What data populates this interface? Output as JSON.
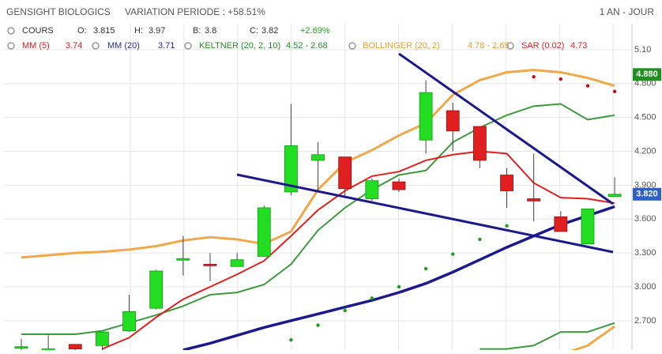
{
  "header": {
    "name": "GENSIGHT BIOLOGICS",
    "variation": "VARIATION PERIODE : +58.51%",
    "period": "1 AN - JOUR",
    "row1": [
      "COURS",
      "O:",
      "3.815",
      "H:",
      "3.97",
      "B:",
      "3.8",
      "C:",
      "3.82",
      "+2.69%"
    ],
    "indicators": [
      {
        "name": "MM (5)",
        "value": "3.74"
      },
      {
        "name": "MM (20)",
        "value": "3.71"
      },
      {
        "name": "KELTNER (20, 2, 10)",
        "value": "4.52 - 2.68"
      },
      {
        "name": "BOLLINGER (20, 2)",
        "value": "4.78 - 2.65"
      },
      {
        "name": "SAR (0.02)",
        "value": "4.73"
      }
    ]
  },
  "chart_data": {
    "type": "candlestick",
    "ylim": [
      2.44,
      5.33
    ],
    "yticks": [
      {
        "value": 5.1,
        "label": "5.10"
      },
      {
        "value": 4.8,
        "label": "4.800"
      },
      {
        "value": 4.5,
        "label": "4.500"
      },
      {
        "value": 4.2,
        "label": "4.200"
      },
      {
        "value": 3.9,
        "label": "3.900"
      },
      {
        "value": 3.6,
        "label": "3.600"
      },
      {
        "value": 3.3,
        "label": "3.300"
      },
      {
        "value": 3.0,
        "label": "3.000"
      },
      {
        "value": 2.7,
        "label": "2.700"
      }
    ],
    "up_color": "#22dd22",
    "down_color": "#e02020",
    "open": [
      2.47,
      2.44,
      2.49,
      2.48,
      2.61,
      2.81,
      3.25,
      3.2,
      3.18,
      3.27,
      3.84,
      4.12,
      4.15,
      3.78,
      3.93,
      4.3,
      4.56,
      4.42,
      3.99,
      3.78,
      3.62,
      3.38,
      3.8
    ],
    "high": [
      2.54,
      2.57,
      2.49,
      2.6,
      2.93,
      3.15,
      3.45,
      3.3,
      3.3,
      3.72,
      4.62,
      4.28,
      4.15,
      3.96,
      3.96,
      4.83,
      4.63,
      4.42,
      4.05,
      4.18,
      3.67,
      3.69,
      3.97
    ],
    "low": [
      2.38,
      2.44,
      2.44,
      2.44,
      2.6,
      2.8,
      3.1,
      3.05,
      3.18,
      3.27,
      3.81,
      3.84,
      3.8,
      3.76,
      3.84,
      4.18,
      4.2,
      4.05,
      3.7,
      3.58,
      3.49,
      3.38,
      3.8
    ],
    "close": [
      2.47,
      2.45,
      2.45,
      2.6,
      2.78,
      3.14,
      3.25,
      3.19,
      3.24,
      3.7,
      4.25,
      4.17,
      3.87,
      3.94,
      3.86,
      4.72,
      4.38,
      4.12,
      3.85,
      3.76,
      3.49,
      3.69,
      3.82
    ],
    "series": [
      {
        "name": "BOLLINGER (20, 2)",
        "color": "#f0a848",
        "width": 3,
        "values": [
          3.26,
          3.28,
          3.3,
          3.31,
          3.33,
          3.36,
          3.41,
          3.44,
          3.42,
          3.38,
          3.49,
          3.86,
          4.1,
          4.21,
          4.34,
          4.45,
          4.7,
          4.83,
          4.9,
          4.92,
          4.9,
          4.85,
          4.78
        ]
      },
      {
        "name": "BOLLINGER (20, 2)",
        "color": "#f0a848",
        "width": 3,
        "values": [
          null,
          null,
          null,
          null,
          null,
          null,
          null,
          null,
          null,
          null,
          null,
          null,
          null,
          null,
          null,
          null,
          null,
          null,
          null,
          null,
          2.4,
          2.48,
          2.65
        ]
      },
      {
        "name": "KELTNER (20, 2, 10)",
        "color": "#3c9a3c",
        "width": 2,
        "values": [
          2.58,
          2.58,
          2.58,
          2.61,
          2.68,
          2.75,
          2.83,
          2.93,
          2.95,
          3.02,
          3.2,
          3.5,
          3.7,
          3.86,
          3.99,
          4.03,
          4.28,
          4.41,
          4.52,
          4.6,
          4.62,
          4.48,
          4.52
        ]
      },
      {
        "name": "KELTNER (20, 2, 10)",
        "color": "#3c9a3c",
        "width": 2,
        "values": [
          null,
          null,
          null,
          null,
          null,
          null,
          null,
          null,
          null,
          null,
          null,
          null,
          null,
          null,
          null,
          null,
          null,
          2.45,
          2.45,
          2.48,
          2.6,
          2.6,
          2.68
        ]
      },
      {
        "name": "MM (5)",
        "color": "#e02020",
        "width": 2,
        "values": [
          null,
          null,
          null,
          2.45,
          2.55,
          2.73,
          2.89,
          3.0,
          3.11,
          3.23,
          3.45,
          3.68,
          3.85,
          3.98,
          4.02,
          4.12,
          4.17,
          4.2,
          4.18,
          3.92,
          3.79,
          3.78,
          3.74
        ]
      },
      {
        "name": "MM (20)",
        "color": "#1a1a8c",
        "width": 3.5,
        "values": [
          null,
          null,
          null,
          null,
          null,
          null,
          2.44,
          2.5,
          2.57,
          2.64,
          2.7,
          2.76,
          2.82,
          2.88,
          2.95,
          3.03,
          3.13,
          3.24,
          3.35,
          3.45,
          3.55,
          3.63,
          3.71
        ]
      }
    ],
    "sar": [
      null,
      null,
      null,
      null,
      null,
      null,
      null,
      null,
      null,
      null,
      2.53,
      2.66,
      2.79,
      2.9,
      3.0,
      3.16,
      3.29,
      3.42,
      3.54,
      4.86,
      4.84,
      4.78,
      4.73
    ],
    "badges": [
      {
        "value": 4.88,
        "label": "4.880",
        "color": "#1f8f1f"
      },
      {
        "value": 3.82,
        "label": "3.820",
        "color": "#2d5fc4"
      }
    ]
  }
}
